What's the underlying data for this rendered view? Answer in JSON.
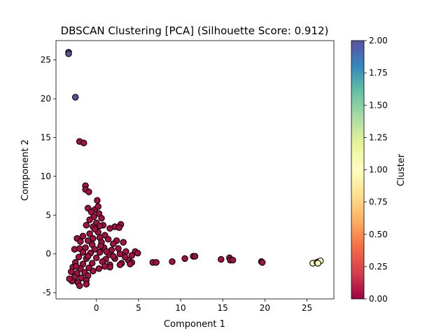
{
  "chart_data": {
    "type": "scatter",
    "title": "DBSCAN Clustering [PCA] (Silhouette Score: 0.912)",
    "xlabel": "Component 1",
    "ylabel": "Component 2",
    "xlim": [
      -4.8,
      28.2
    ],
    "ylim": [
      -5.8,
      27.5
    ],
    "xticks": [
      0,
      5,
      10,
      15,
      20,
      25
    ],
    "yticks": [
      -5,
      0,
      5,
      10,
      15,
      20,
      25
    ],
    "grid": false,
    "colormap": "Spectral",
    "colorbar": {
      "label": "Cluster",
      "range": [
        0,
        2
      ],
      "ticks": [
        "0.00",
        "0.25",
        "0.50",
        "0.75",
        "1.00",
        "1.25",
        "1.50",
        "1.75",
        "2.00"
      ]
    },
    "series": [
      {
        "cluster": 0,
        "color": "#a50f46",
        "points": [
          [
            -2.0,
            14.5
          ],
          [
            -1.5,
            14.3
          ],
          [
            -1.3,
            8.8
          ],
          [
            -1.3,
            8.3
          ],
          [
            -0.9,
            8.0
          ],
          [
            0.1,
            6.9
          ],
          [
            -1.0,
            5.9
          ],
          [
            -0.2,
            5.7
          ],
          [
            -0.6,
            5.4
          ],
          [
            0.3,
            5.2
          ],
          [
            -0.3,
            4.8
          ],
          [
            0.6,
            4.6
          ],
          [
            -1.2,
            3.7
          ],
          [
            0.0,
            4.0
          ],
          [
            -0.4,
            3.5
          ],
          [
            0.8,
            3.7
          ],
          [
            2.9,
            3.8
          ],
          [
            1.6,
            3.3
          ],
          [
            2.2,
            3.5
          ],
          [
            2.7,
            3.4
          ],
          [
            -2.3,
            2.0
          ],
          [
            -1.6,
            2.3
          ],
          [
            -0.8,
            2.6
          ],
          [
            0.2,
            2.8
          ],
          [
            1.0,
            2.4
          ],
          [
            0.4,
            2.1
          ],
          [
            -1.9,
            1.6
          ],
          [
            -1.0,
            1.7
          ],
          [
            0.6,
            1.5
          ],
          [
            1.4,
            1.9
          ],
          [
            2.4,
            1.7
          ],
          [
            3.2,
            1.5
          ],
          [
            2.0,
            1.3
          ],
          [
            -0.5,
            1.2
          ],
          [
            -2.6,
            0.6
          ],
          [
            -2.0,
            0.7
          ],
          [
            -1.3,
            0.8
          ],
          [
            -0.2,
            0.6
          ],
          [
            0.9,
            0.8
          ],
          [
            1.8,
            0.5
          ],
          [
            2.6,
            0.7
          ],
          [
            3.5,
            0.3
          ],
          [
            4.6,
            0.3
          ],
          [
            4.9,
            0.1
          ],
          [
            4.2,
            -0.2
          ],
          [
            -1.6,
            0.2
          ],
          [
            -0.7,
            0.1
          ],
          [
            0.4,
            0.2
          ],
          [
            1.5,
            -0.1
          ],
          [
            2.8,
            0.0
          ],
          [
            -2.1,
            -0.4
          ],
          [
            -1.2,
            -0.6
          ],
          [
            0.0,
            -0.5
          ],
          [
            1.1,
            -0.7
          ],
          [
            2.2,
            -0.6
          ],
          [
            3.8,
            -0.8
          ],
          [
            4.2,
            -1.1
          ],
          [
            3.0,
            -1.2
          ],
          [
            -2.5,
            -1.1
          ],
          [
            -1.6,
            -1.3
          ],
          [
            -0.5,
            -1.2
          ],
          [
            0.7,
            -1.0
          ],
          [
            1.6,
            -1.4
          ],
          [
            2.8,
            -1.4
          ],
          [
            4.0,
            -1.3
          ],
          [
            -2.8,
            -1.7
          ],
          [
            -1.9,
            -1.9
          ],
          [
            -0.9,
            -1.8
          ],
          [
            0.3,
            -1.9
          ],
          [
            1.6,
            -1.7
          ],
          [
            -3.0,
            -2.3
          ],
          [
            -2.3,
            -2.5
          ],
          [
            -1.4,
            -2.4
          ],
          [
            -0.4,
            -2.2
          ],
          [
            -2.6,
            -3.0
          ],
          [
            -1.8,
            -3.1
          ],
          [
            -1.0,
            -2.8
          ],
          [
            -2.9,
            -3.5
          ],
          [
            -2.2,
            -3.7
          ],
          [
            -1.2,
            -3.4
          ],
          [
            -2.0,
            -4.1
          ],
          [
            -1.2,
            -3.9
          ],
          [
            -3.2,
            -3.2
          ],
          [
            -2.4,
            -1.6
          ],
          [
            -1.0,
            -0.3
          ],
          [
            0.5,
            1.0
          ],
          [
            1.2,
            0.3
          ],
          [
            -0.2,
            3.2
          ],
          [
            0.4,
            3.6
          ],
          [
            -0.8,
            4.4
          ],
          [
            0.2,
            6.1
          ],
          [
            -0.4,
            2.0
          ],
          [
            1.0,
            -1.6
          ],
          [
            2.0,
            -0.3
          ],
          [
            3.4,
            -0.4
          ],
          [
            6.7,
            -1.1
          ],
          [
            7.1,
            -1.1
          ],
          [
            9.0,
            -1.0
          ],
          [
            10.5,
            -0.6
          ],
          [
            11.5,
            -0.3
          ],
          [
            11.7,
            -0.3
          ],
          [
            14.8,
            -0.7
          ],
          [
            15.8,
            -0.5
          ],
          [
            15.9,
            -0.8
          ],
          [
            16.2,
            -0.8
          ],
          [
            19.6,
            -1.0
          ],
          [
            19.7,
            -1.1
          ]
        ]
      },
      {
        "cluster": 1,
        "color": "#feffbe",
        "points": [
          [
            25.7,
            -1.2
          ],
          [
            26.2,
            -1.1
          ],
          [
            26.4,
            -1.0
          ],
          [
            26.6,
            -0.9
          ],
          [
            26.3,
            -1.2
          ]
        ]
      },
      {
        "cluster": 2,
        "color": "#5e4fa2",
        "points": [
          [
            -3.3,
            26.0
          ],
          [
            -3.3,
            25.8
          ],
          [
            -2.5,
            20.2
          ]
        ]
      }
    ]
  }
}
